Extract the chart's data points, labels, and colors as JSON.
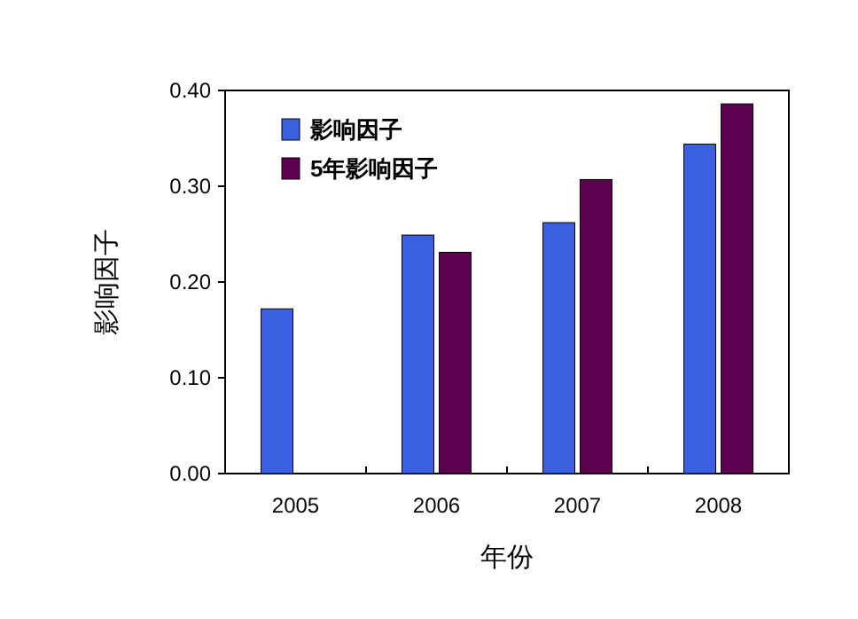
{
  "chart_data": {
    "type": "bar",
    "xlabel": "年份",
    "ylabel": "影响因子",
    "categories": [
      "2005",
      "2006",
      "2007",
      "2008"
    ],
    "series": [
      {
        "name": "影响因子",
        "color": "#3a5fe0",
        "values": [
          0.172,
          0.249,
          0.262,
          0.344
        ]
      },
      {
        "name": "5年影响因子",
        "color": "#5c0050",
        "values": [
          null,
          0.231,
          0.307,
          0.386
        ]
      }
    ],
    "ylim": [
      0,
      0.4
    ],
    "yticks": [
      {
        "value": 0,
        "label": "0.00"
      },
      {
        "value": 0.1,
        "label": "0.10"
      },
      {
        "value": 0.2,
        "label": "0.20"
      },
      {
        "value": 0.3,
        "label": "0.30"
      },
      {
        "value": 0.4,
        "label": "0.40"
      }
    ],
    "grid": false,
    "legend": "top left"
  }
}
